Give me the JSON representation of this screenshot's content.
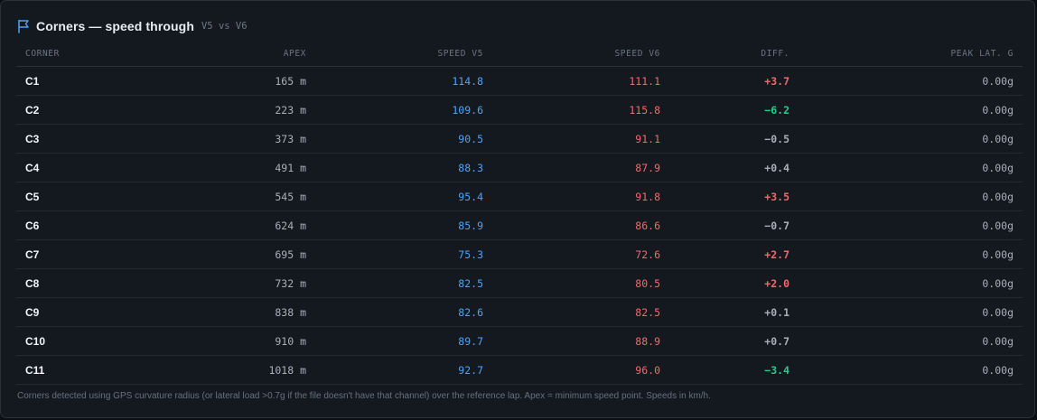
{
  "header": {
    "title": "Corners — speed through",
    "subtitle": "V5 vs V6"
  },
  "colors": {
    "v5": "#4ea3f5",
    "v6": "#f16a6a",
    "diff_positive": "#f16a6a",
    "diff_negative": "#2fc98a",
    "diff_neutral": "#a7afba",
    "flag_icon": "#4ea3f5"
  },
  "table": {
    "columns": [
      "CORNER",
      "APEX",
      "SPEED V5",
      "SPEED V6",
      "DIFF.",
      "PEAK LAT. G"
    ],
    "rows": [
      {
        "corner": "C1",
        "apex": "165 m",
        "v5": "114.8",
        "v6": "111.1",
        "diff": "+3.7",
        "diff_state": "positive",
        "peak": "0.00g"
      },
      {
        "corner": "C2",
        "apex": "223 m",
        "v5": "109.6",
        "v6": "115.8",
        "diff": "−6.2",
        "diff_state": "negative",
        "peak": "0.00g"
      },
      {
        "corner": "C3",
        "apex": "373 m",
        "v5": "90.5",
        "v6": "91.1",
        "diff": "−0.5",
        "diff_state": "neutral",
        "peak": "0.00g"
      },
      {
        "corner": "C4",
        "apex": "491 m",
        "v5": "88.3",
        "v6": "87.9",
        "diff": "+0.4",
        "diff_state": "neutral",
        "peak": "0.00g"
      },
      {
        "corner": "C5",
        "apex": "545 m",
        "v5": "95.4",
        "v6": "91.8",
        "diff": "+3.5",
        "diff_state": "positive",
        "peak": "0.00g"
      },
      {
        "corner": "C6",
        "apex": "624 m",
        "v5": "85.9",
        "v6": "86.6",
        "diff": "−0.7",
        "diff_state": "neutral",
        "peak": "0.00g"
      },
      {
        "corner": "C7",
        "apex": "695 m",
        "v5": "75.3",
        "v6": "72.6",
        "diff": "+2.7",
        "diff_state": "positive",
        "peak": "0.00g"
      },
      {
        "corner": "C8",
        "apex": "732 m",
        "v5": "82.5",
        "v6": "80.5",
        "diff": "+2.0",
        "diff_state": "positive",
        "peak": "0.00g"
      },
      {
        "corner": "C9",
        "apex": "838 m",
        "v5": "82.6",
        "v6": "82.5",
        "diff": "+0.1",
        "diff_state": "neutral",
        "peak": "0.00g"
      },
      {
        "corner": "C10",
        "apex": "910 m",
        "v5": "89.7",
        "v6": "88.9",
        "diff": "+0.7",
        "diff_state": "neutral",
        "peak": "0.00g"
      },
      {
        "corner": "C11",
        "apex": "1018 m",
        "v5": "92.7",
        "v6": "96.0",
        "diff": "−3.4",
        "diff_state": "negative",
        "peak": "0.00g"
      }
    ]
  },
  "footnote": "Corners detected using GPS curvature radius (or lateral load >0.7g if the file doesn't have that channel) over the reference lap. Apex = minimum speed point. Speeds in km/h."
}
